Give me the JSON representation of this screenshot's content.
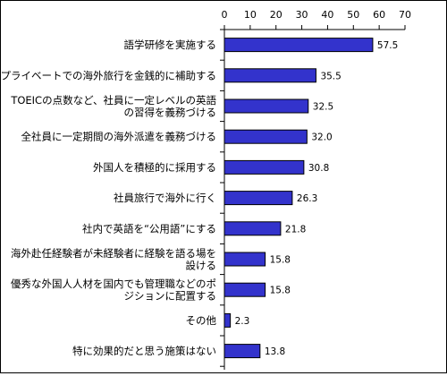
{
  "chart_data": {
    "type": "bar",
    "orientation": "horizontal",
    "categories": [
      [
        "語学研修を実施する"
      ],
      [
        "プライベートでの海外旅行を金銭的に補助する"
      ],
      [
        "TOEICの点数など、社員に一定レベルの英語",
        "の習得を義務づける"
      ],
      [
        "全社員に一定期間の海外派遣を義務づける"
      ],
      [
        "外国人を積極的に採用する"
      ],
      [
        "社員旅行で海外に行く"
      ],
      [
        "社内で英語を“公用語”にする"
      ],
      [
        "海外赴任経験者が未経験者に経験を語る場を",
        "設ける"
      ],
      [
        "優秀な外国人人材を国内でも管理職などのポ",
        "ジションに配置する"
      ],
      [
        "その他"
      ],
      [
        "特に効果的だと思う施策はない"
      ]
    ],
    "values": [
      57.5,
      35.5,
      32.5,
      32.0,
      30.8,
      26.3,
      21.8,
      15.8,
      15.8,
      2.3,
      13.8
    ],
    "value_labels": [
      "57.5",
      "35.5",
      "32.5",
      "32.0",
      "30.8",
      "26.3",
      "21.8",
      "15.8",
      "15.8",
      "2.3",
      "13.8"
    ],
    "xticks": [
      "0",
      "10",
      "20",
      "30",
      "40",
      "50",
      "60",
      "70"
    ],
    "xlim": [
      0,
      70
    ],
    "grid": false,
    "legend": "none",
    "colors": {
      "bar": "#3333cc",
      "bar_border": "#000000",
      "axis": "#000000",
      "text": "#000000"
    }
  }
}
